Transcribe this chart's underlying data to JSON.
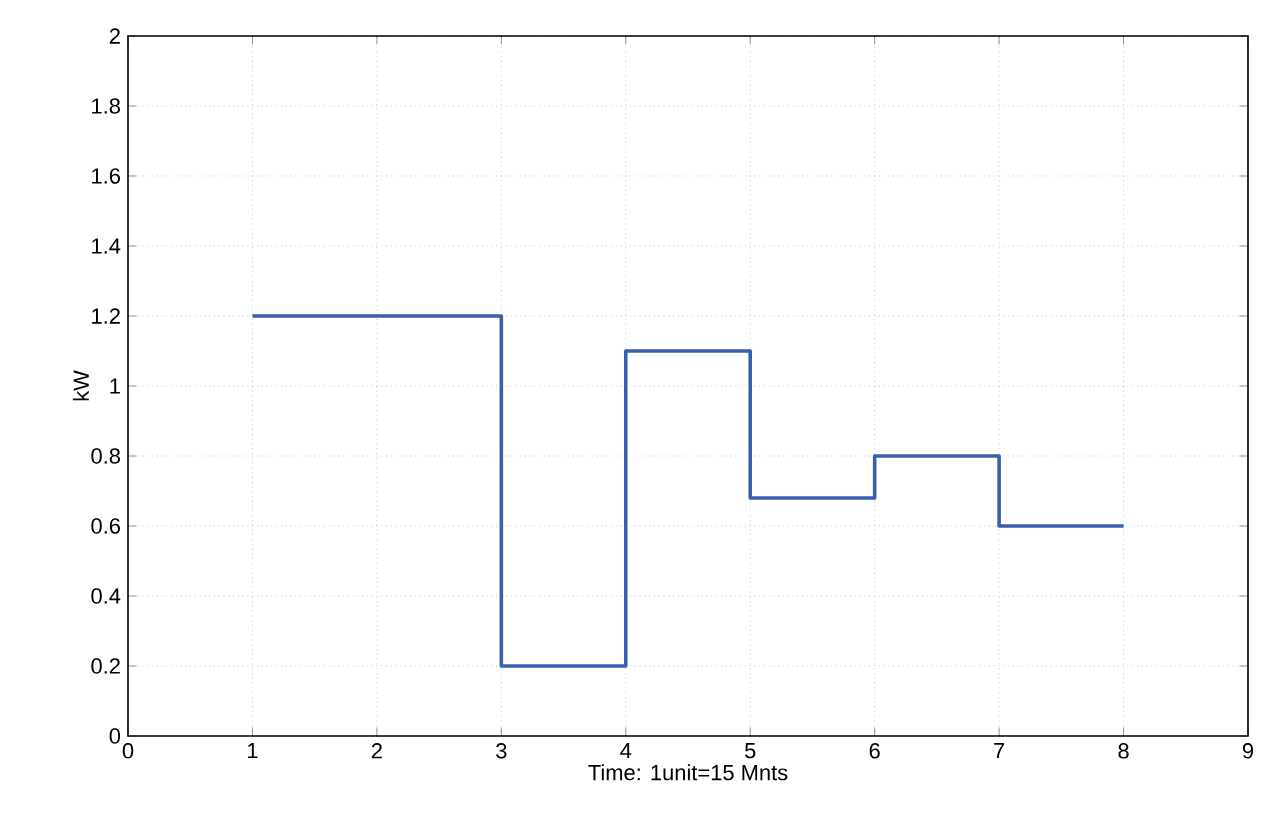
{
  "chart_data": {
    "type": "step",
    "xlabel": "Time: 1unit=15 Mnts",
    "ylabel": "kW",
    "x": [
      1,
      2,
      3,
      4,
      5,
      6,
      7,
      8
    ],
    "series": [
      {
        "color": "#3a5fad",
        "values": [
          1.2,
          1.2,
          0.2,
          1.1,
          0.68,
          0.8,
          0.6,
          0.6
        ]
      }
    ],
    "xlim": [
      0,
      9
    ],
    "xticks": [
      0,
      1,
      2,
      3,
      4,
      5,
      6,
      7,
      8,
      9
    ],
    "ylim": [
      0,
      2
    ],
    "yticks": [
      0,
      0.2,
      0.4,
      0.6,
      0.8,
      1,
      1.2,
      1.4,
      1.6,
      1.8,
      2
    ],
    "grid": true,
    "line_style": "solid"
  }
}
